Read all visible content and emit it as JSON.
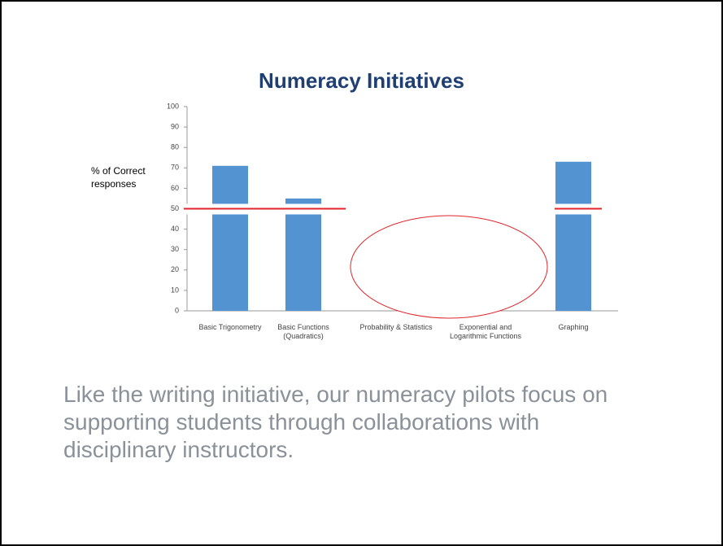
{
  "chart_data": {
    "type": "bar",
    "title": "Numeracy Initiatives",
    "y_label": "% of Correct responses",
    "categories": [
      "Basic Trigonometry",
      "Basic Functions (Quadratics)",
      "Probability & Statistics",
      "Exponential and Logarithmic Functions",
      "Graphing"
    ],
    "values": [
      71,
      55,
      null,
      null,
      73
    ],
    "color": "#5393d1",
    "ylim": [
      0,
      100
    ],
    "yticks": [
      0,
      10,
      20,
      30,
      40,
      50,
      60,
      70,
      80,
      90,
      100
    ],
    "reference_line": 50,
    "reference_color": "#e0262b",
    "grid": false
  },
  "body": {
    "text": "Like the writing initiative, our numeracy pilots focus on supporting students through collaborations with disciplinary instructors."
  }
}
